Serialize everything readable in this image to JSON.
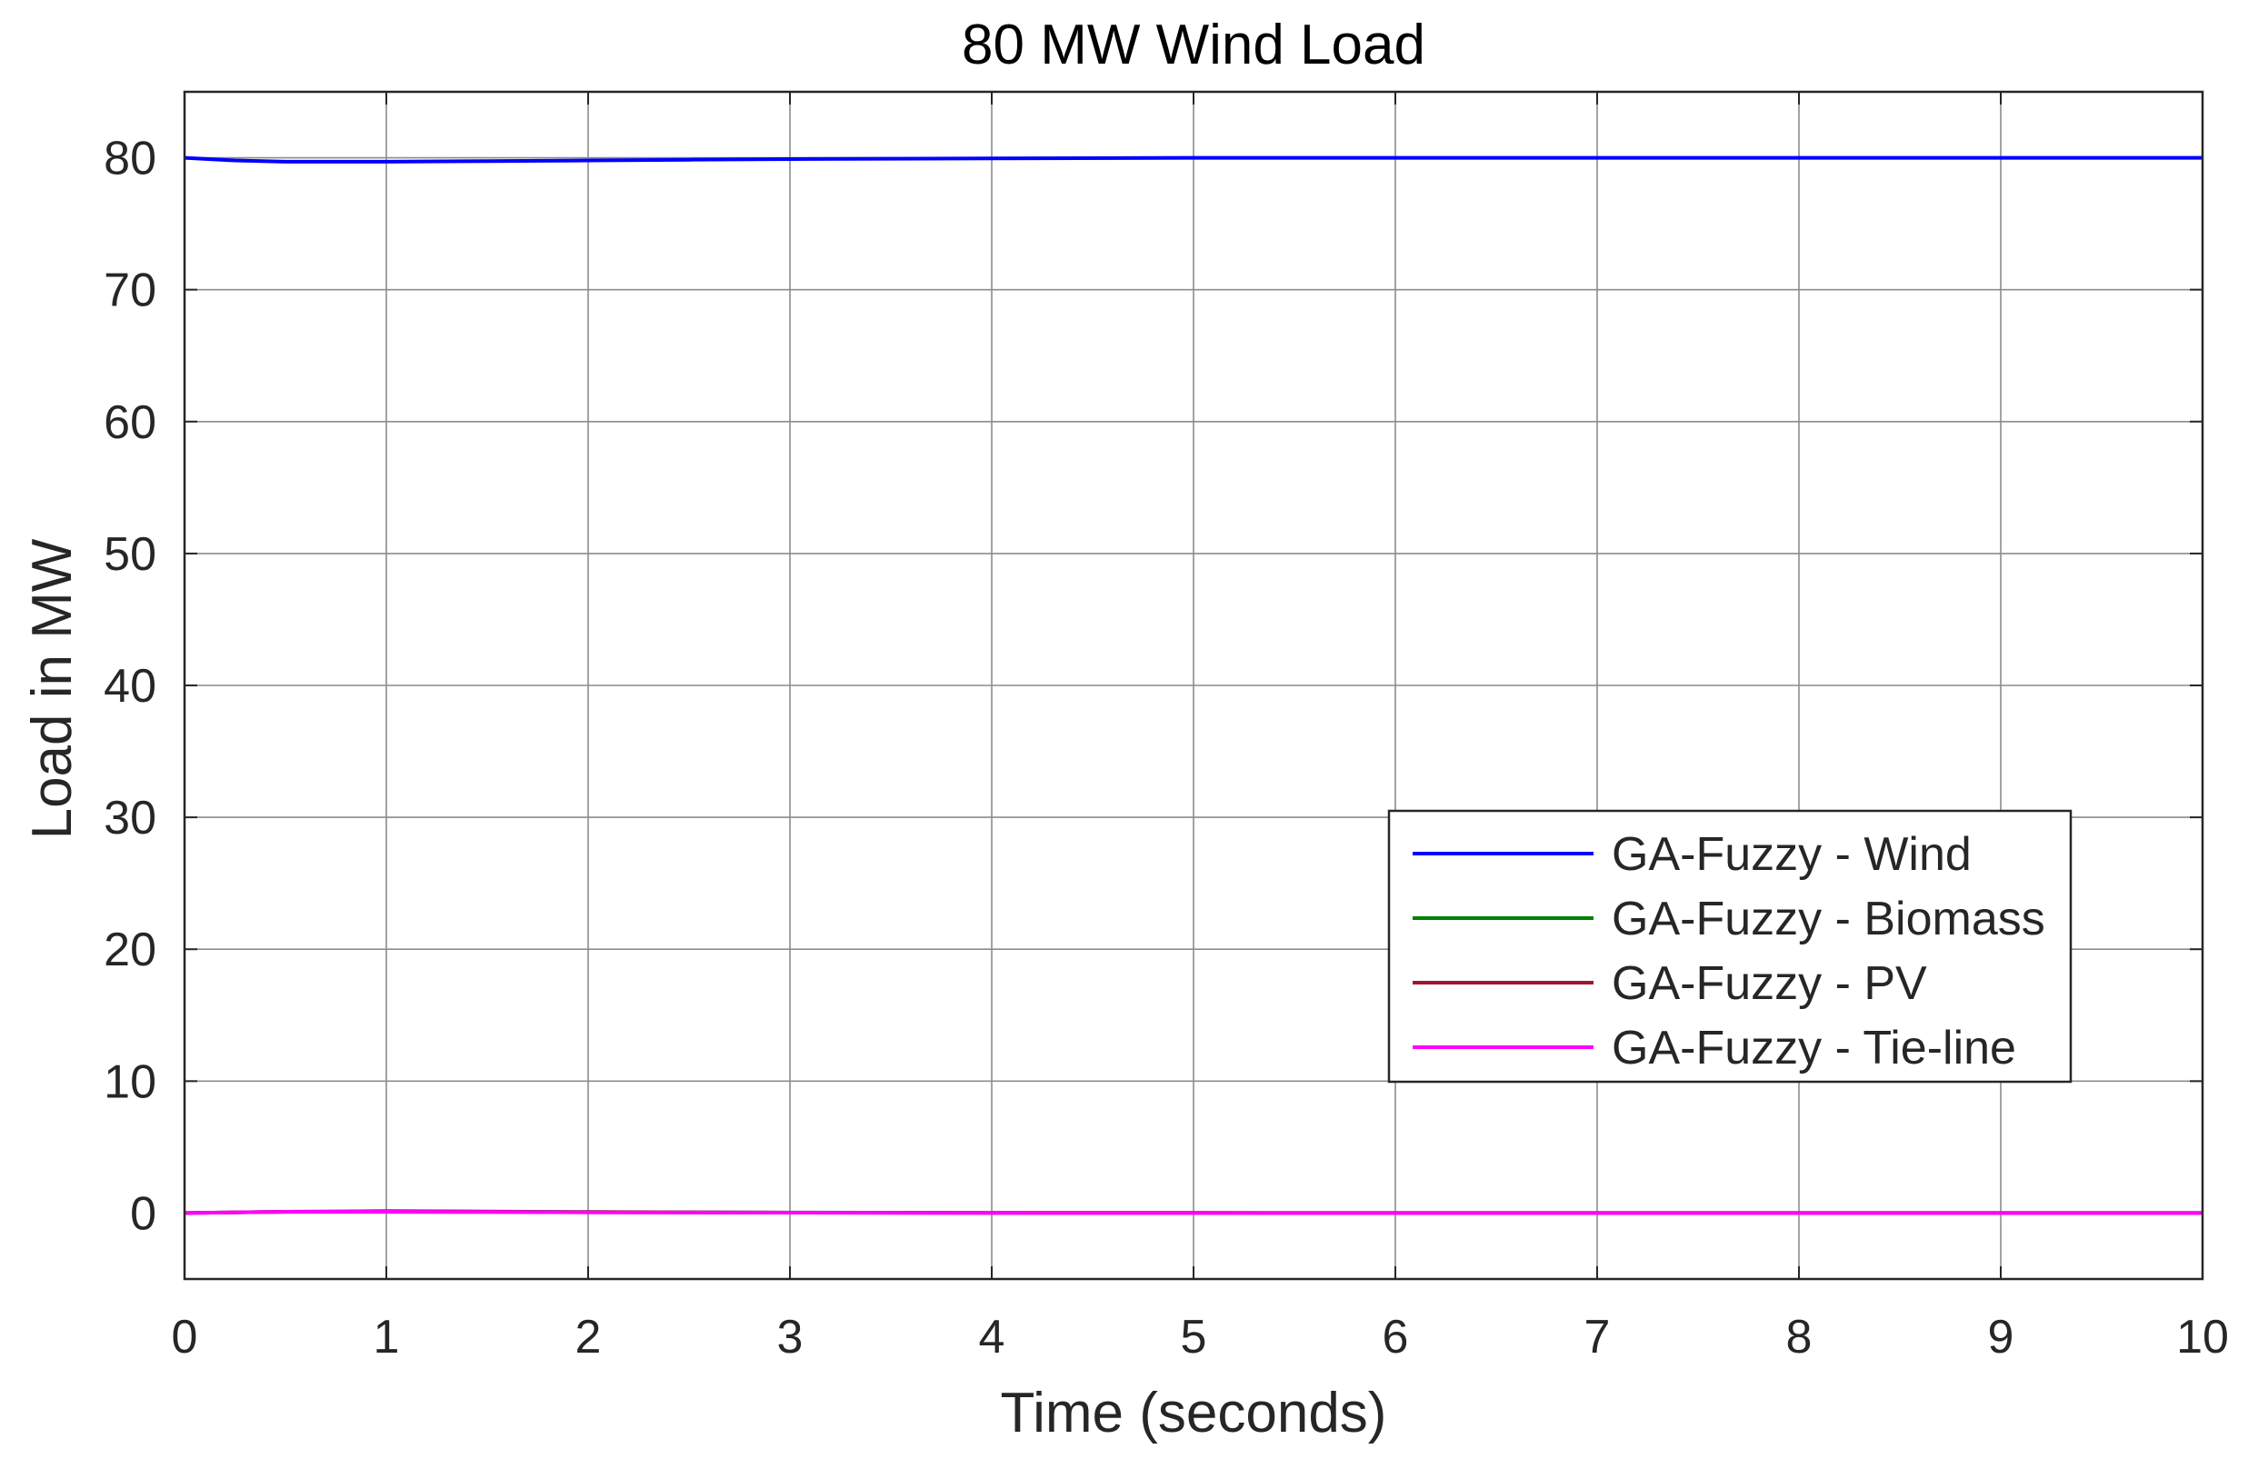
{
  "chart_data": {
    "type": "line",
    "title": "80 MW Wind Load",
    "xlabel": "Time (seconds)",
    "ylabel": "Load in MW",
    "xlim": [
      0,
      10
    ],
    "ylim": [
      -5,
      85
    ],
    "xticks": [
      "0",
      "1",
      "2",
      "3",
      "4",
      "5",
      "6",
      "7",
      "8",
      "9",
      "10"
    ],
    "yticks": [
      "0",
      "10",
      "20",
      "30",
      "40",
      "50",
      "60",
      "70",
      "80"
    ],
    "grid": true,
    "legend_position": "center-right",
    "series": [
      {
        "name": "GA-Fuzzy - Wind",
        "color": "#0000ff",
        "x": [
          0,
          0.25,
          0.5,
          0.75,
          1,
          1.5,
          2,
          2.5,
          3,
          4,
          5,
          6,
          7,
          8,
          9,
          10
        ],
        "y": [
          80,
          79.8,
          79.7,
          79.7,
          79.7,
          79.75,
          79.8,
          79.85,
          79.9,
          79.95,
          80,
          80,
          80,
          80,
          80,
          80
        ]
      },
      {
        "name": "GA-Fuzzy - Biomass",
        "color": "#008000",
        "x": [
          0,
          0.5,
          1,
          1.5,
          2,
          3,
          4,
          5,
          6,
          7,
          8,
          9,
          10
        ],
        "y": [
          0,
          0.1,
          0.15,
          0.12,
          0.08,
          0.04,
          0.02,
          0.01,
          0,
          0,
          0,
          0,
          0
        ]
      },
      {
        "name": "GA-Fuzzy - PV",
        "color": "#a2142f",
        "x": [
          0,
          0.5,
          1,
          1.5,
          2,
          3,
          4,
          5,
          6,
          7,
          8,
          9,
          10
        ],
        "y": [
          0,
          0.1,
          0.12,
          0.1,
          0.07,
          0.03,
          0.02,
          0.01,
          0,
          0,
          0,
          0,
          0
        ]
      },
      {
        "name": "GA-Fuzzy - Tie-line",
        "color": "#ff00ff",
        "x": [
          0,
          0.5,
          1,
          1.5,
          2,
          3,
          4,
          5,
          6,
          7,
          8,
          9,
          10
        ],
        "y": [
          0,
          0.1,
          0.1,
          0.08,
          0.05,
          0.03,
          0.01,
          0,
          0,
          0,
          0,
          0,
          0
        ]
      }
    ]
  }
}
